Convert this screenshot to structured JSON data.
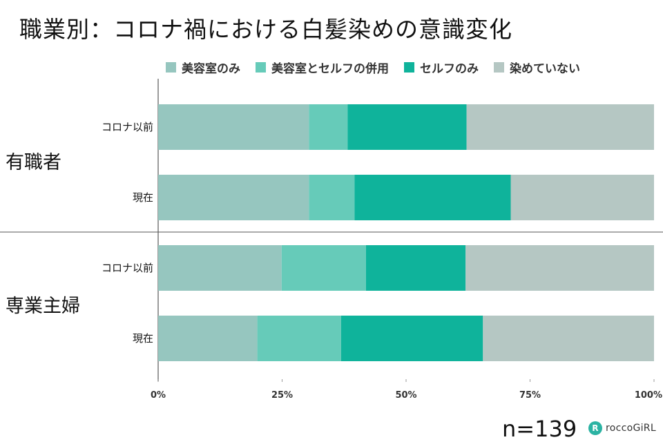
{
  "chart_data": {
    "type": "bar",
    "orientation": "horizontal",
    "stacked": true,
    "percent": true,
    "title": "職業別：コロナ禍における白髪染めの意識変化",
    "groups": [
      {
        "name": "有職者",
        "categories": [
          "コロナ以前",
          "現在"
        ]
      },
      {
        "name": "専業主婦",
        "categories": [
          "コロナ以前",
          "現在"
        ]
      }
    ],
    "series": [
      {
        "name": "美容室のみ",
        "color": "#96c6bf",
        "values": [
          30.4,
          30.4,
          24.9,
          20.0
        ]
      },
      {
        "name": "美容室とセルフの併用",
        "color": "#66cbb9",
        "values": [
          7.8,
          9.2,
          17.0,
          16.9
        ]
      },
      {
        "name": "セルフのみ",
        "color": "#0fb39b",
        "values": [
          24.0,
          31.5,
          20.1,
          28.6
        ]
      },
      {
        "name": "染めていない",
        "color": "#b5c7c3",
        "values": [
          37.8,
          28.9,
          38.0,
          34.5
        ]
      }
    ],
    "x_ticks": [
      "0%",
      "25%",
      "50%",
      "75%",
      "100%"
    ],
    "xlim": [
      0,
      100
    ],
    "legend": "top",
    "grid": false
  },
  "footer": {
    "sample_size": "n=139",
    "logo_text": "roccoGiRL",
    "logo_mark": "R"
  }
}
